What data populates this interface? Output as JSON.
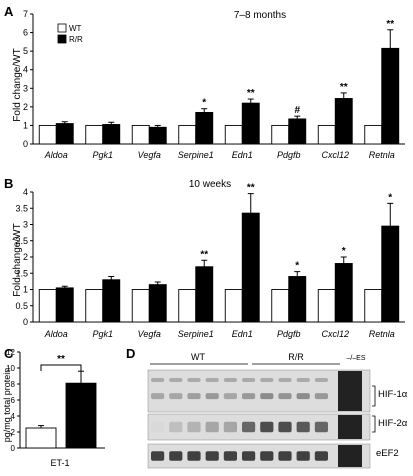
{
  "panels": {
    "A": {
      "letter": "A",
      "title": "7–8 months",
      "ylabel": "Fold change/WT",
      "legend": [
        {
          "label": "WT",
          "color": "#ffffff"
        },
        {
          "label": "R/R",
          "color": "#000000"
        }
      ]
    },
    "B": {
      "letter": "B",
      "title": "10 weeks",
      "ylabel": "Fold change/WT"
    },
    "C": {
      "letter": "C",
      "ylabel": "pg/mg total protein",
      "xlabel": "ET-1"
    },
    "D": {
      "letter": "D",
      "group_labels": [
        "WT",
        "R/R",
        "–/–ES"
      ],
      "blot_labels": [
        "HIF-1α",
        "HIF-2α",
        "eEF2"
      ]
    }
  },
  "chart_data": [
    {
      "id": "A",
      "type": "bar",
      "title": "7–8 months",
      "ylabel": "Fold change/WT",
      "ylim": [
        0,
        7
      ],
      "yticks": [
        "0",
        "1",
        "2",
        "3",
        "4",
        "5",
        "6",
        "7"
      ],
      "categories": [
        "Aldoa",
        "Pgk1",
        "Vegfa",
        "Serpine1",
        "Edn1",
        "Pdgfb",
        "Cxcl12",
        "Retnla"
      ],
      "series": [
        {
          "name": "WT",
          "values": [
            1,
            1,
            1,
            1,
            1,
            1,
            1,
            1
          ],
          "errors": [
            0,
            0,
            0,
            0,
            0,
            0,
            0,
            0
          ]
        },
        {
          "name": "R/R",
          "values": [
            1.1,
            1.05,
            0.9,
            1.7,
            2.2,
            1.35,
            2.45,
            5.15
          ],
          "errors": [
            0.1,
            0.12,
            0.1,
            0.2,
            0.22,
            0.15,
            0.3,
            1.0
          ]
        }
      ],
      "annotations": [
        "",
        "",
        "",
        "*",
        "**",
        "#",
        "**",
        "**"
      ]
    },
    {
      "id": "B",
      "type": "bar",
      "title": "10 weeks",
      "ylabel": "Fold change/WT",
      "ylim": [
        0,
        4
      ],
      "yticks": [
        "0",
        "0.5",
        "1",
        "1.5",
        "2",
        "2.5",
        "3",
        "3.5",
        "4"
      ],
      "categories": [
        "Aldoa",
        "Pgk1",
        "Vegfa",
        "Serpine1",
        "Edn1",
        "Pdgfb",
        "Cxcl12",
        "Retnla"
      ],
      "series": [
        {
          "name": "WT",
          "values": [
            1,
            1,
            1,
            1,
            1,
            1,
            1,
            1
          ],
          "errors": [
            0,
            0,
            0,
            0,
            0,
            0,
            0,
            0
          ]
        },
        {
          "name": "R/R",
          "values": [
            1.05,
            1.3,
            1.15,
            1.7,
            3.35,
            1.4,
            1.8,
            2.95
          ],
          "errors": [
            0.05,
            0.1,
            0.08,
            0.2,
            0.6,
            0.15,
            0.2,
            0.7
          ]
        }
      ],
      "annotations": [
        "",
        "",
        "",
        "**",
        "**",
        "*",
        "*",
        "*"
      ]
    },
    {
      "id": "C",
      "type": "bar",
      "ylabel": "pg/mg total protein",
      "ylim": [
        0,
        12
      ],
      "yticks": [
        "0",
        "2",
        "4",
        "6",
        "8",
        "10",
        "12"
      ],
      "categories": [
        "ET-1"
      ],
      "series": [
        {
          "name": "WT",
          "values": [
            2.5
          ],
          "errors": [
            0.3
          ]
        },
        {
          "name": "R/R",
          "values": [
            8.1
          ],
          "errors": [
            1.5
          ]
        }
      ],
      "annotations": [
        "**"
      ]
    }
  ]
}
